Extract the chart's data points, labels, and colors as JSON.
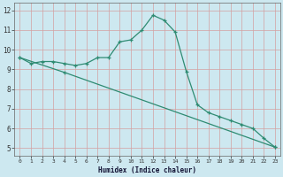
{
  "line1_x": [
    0,
    1,
    2,
    3,
    4,
    5,
    6,
    7,
    8,
    9,
    10,
    11,
    12,
    13,
    14,
    15,
    16,
    17,
    18,
    19,
    20,
    21,
    22,
    23
  ],
  "line1_y": [
    9.6,
    9.3,
    9.4,
    9.4,
    9.3,
    9.2,
    9.3,
    9.6,
    9.6,
    10.4,
    10.5,
    11.0,
    11.75,
    11.5,
    10.9,
    8.9,
    7.2,
    6.8,
    6.6,
    6.4,
    6.2,
    6.0,
    5.5,
    5.05
  ],
  "line2_x": [
    0,
    4,
    23
  ],
  "line2_y": [
    9.6,
    8.85,
    5.05
  ],
  "line_color": "#2e8b72",
  "bg_color": "#cde8f0",
  "grid_color_h": "#d4a0a0",
  "grid_color_v": "#d4a0a0",
  "xlabel": "Humidex (Indice chaleur)",
  "ylim": [
    4.6,
    12.4
  ],
  "xlim": [
    -0.5,
    23.5
  ],
  "yticks": [
    5,
    6,
    7,
    8,
    9,
    10,
    11,
    12
  ],
  "xticks": [
    0,
    1,
    2,
    3,
    4,
    5,
    6,
    7,
    8,
    9,
    10,
    11,
    12,
    13,
    14,
    15,
    16,
    17,
    18,
    19,
    20,
    21,
    22,
    23
  ]
}
